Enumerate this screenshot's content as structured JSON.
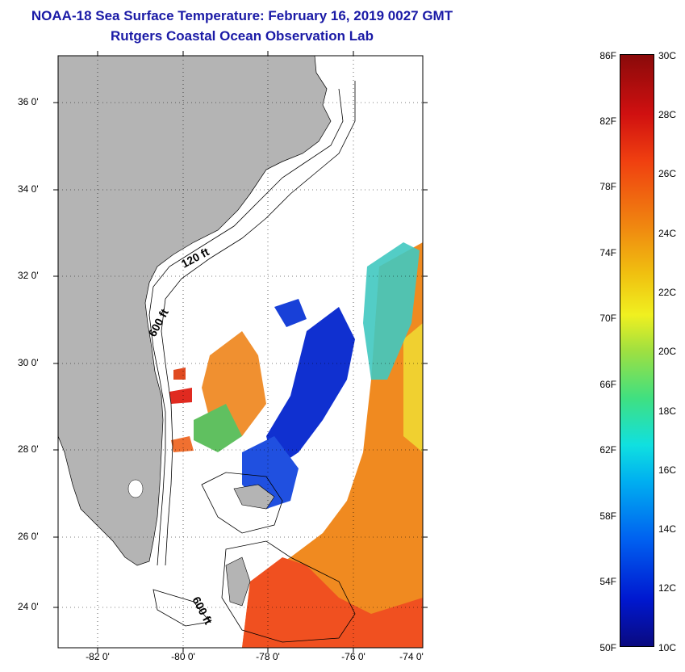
{
  "title": {
    "line1": "NOAA-18 Sea Surface Temperature:  February 16, 2019 0027 GMT",
    "line2": "Rutgers Coastal Ocean Observation Lab"
  },
  "map": {
    "lat_labels": [
      "36 0'",
      "34 0'",
      "32 0'",
      "30 0'",
      "28 0'",
      "26 0'",
      "24 0'"
    ],
    "lon_labels": [
      "-82 0'",
      "-80 0'",
      "-78 0'",
      "-76 0'",
      "-74 0'"
    ],
    "contours": [
      "120 ft",
      "600 ft",
      "600 ft"
    ],
    "land_color": "#b4b4b4"
  },
  "colorbar": {
    "fahrenheit": [
      "86F",
      "82F",
      "78F",
      "74F",
      "70F",
      "66F",
      "62F",
      "58F",
      "54F",
      "50F"
    ],
    "celsius": [
      "30C",
      "28C",
      "26C",
      "24C",
      "22C",
      "20C",
      "18C",
      "16C",
      "14C",
      "12C",
      "10C"
    ],
    "min_color": "#0a0a80",
    "max_color": "#8a0a0a"
  }
}
